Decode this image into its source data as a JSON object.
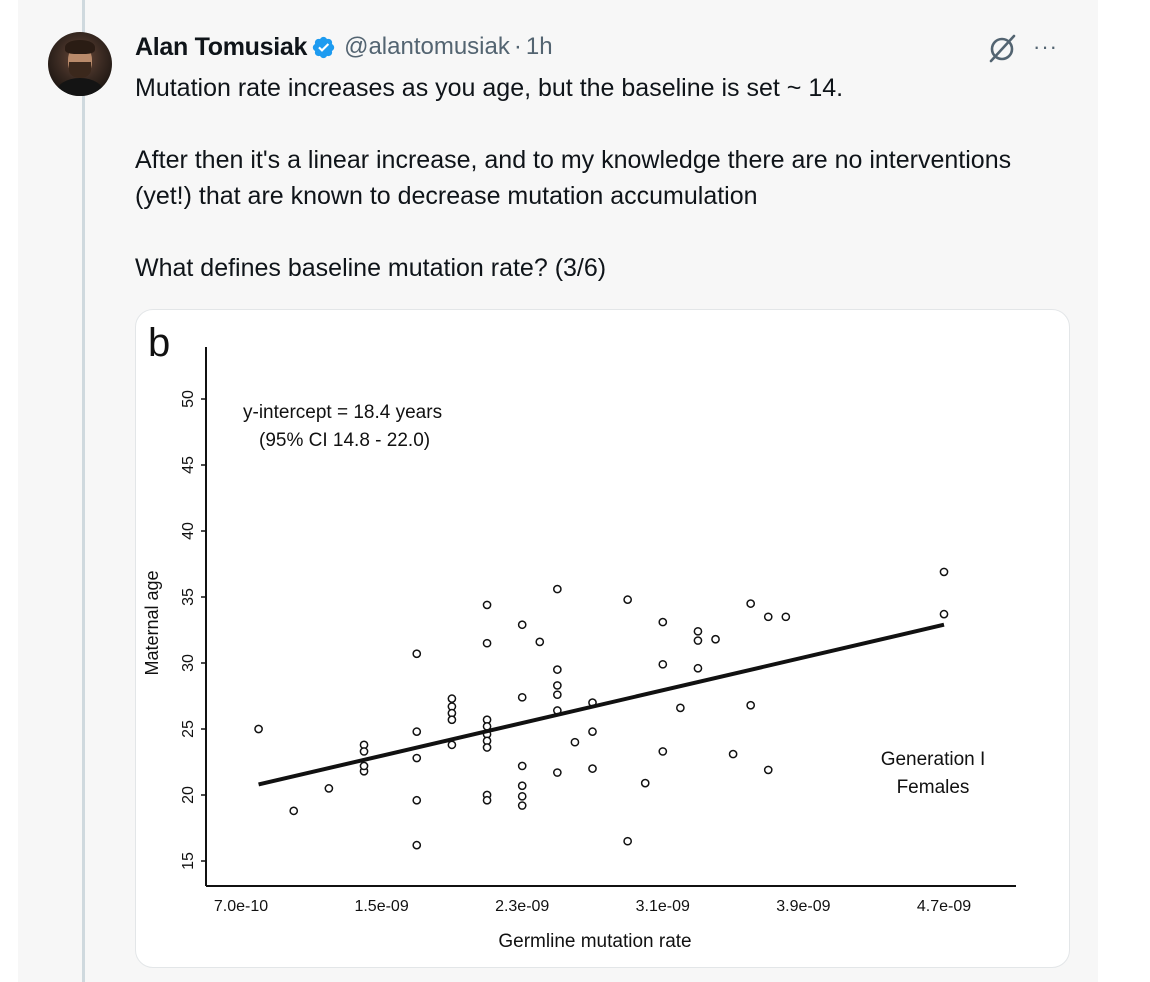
{
  "tweet": {
    "author_name": "Alan Tomusiak",
    "handle": "@alantomusiak",
    "separator": "·",
    "time": "1h",
    "paragraphs": [
      "Mutation rate increases as you age, but the baseline is set ~ 14.",
      "After then it's a linear increase, and to my knowledge there are no interventions (yet!) that are known to decrease mutation accumulation",
      "What defines baseline mutation rate? (3/6)"
    ],
    "more_label": "···",
    "icons": {
      "avatar": "avatar",
      "verified": "verified-badge-icon",
      "grok": "grok-icon",
      "more": "more-options-icon"
    },
    "colors": {
      "verified": "#1d9bf0",
      "secondary_text": "#536471"
    }
  },
  "chart_data": {
    "type": "scatter",
    "panel_label": "b",
    "xlabel": "Germline mutation rate",
    "ylabel": "Maternal age",
    "x_ticks": [
      "7.0e-10",
      "1.5e-09",
      "2.3e-09",
      "3.1e-09",
      "3.9e-09",
      "4.7e-09"
    ],
    "x_tick_values": [
      7e-10,
      1.5e-09,
      2.3e-09,
      3.1e-09,
      3.9e-09,
      4.7e-09
    ],
    "y_ticks": [
      15,
      20,
      25,
      30,
      35,
      40,
      45,
      50
    ],
    "xlim": [
      7e-10,
      4.7e-09
    ],
    "ylim": [
      13,
      51
    ],
    "annotation": [
      "y-intercept = 18.4 years",
      "(95% CI 14.8 - 22.0)"
    ],
    "group_label": [
      "Generation I",
      "Females"
    ],
    "fit_line": {
      "x": [
        8e-10,
        4.7e-09
      ],
      "y": [
        20.8,
        32.9
      ]
    },
    "points": [
      [
        8e-10,
        25.0
      ],
      [
        1e-09,
        18.8
      ],
      [
        1.2e-09,
        20.5
      ],
      [
        1.4e-09,
        23.8
      ],
      [
        1.4e-09,
        23.3
      ],
      [
        1.4e-09,
        21.8
      ],
      [
        1.4e-09,
        22.2
      ],
      [
        1.7e-09,
        30.7
      ],
      [
        1.7e-09,
        24.8
      ],
      [
        1.7e-09,
        22.8
      ],
      [
        1.7e-09,
        19.6
      ],
      [
        1.7e-09,
        16.2
      ],
      [
        1.9e-09,
        27.3
      ],
      [
        1.9e-09,
        26.7
      ],
      [
        1.9e-09,
        26.2
      ],
      [
        1.9e-09,
        25.7
      ],
      [
        1.9e-09,
        23.8
      ],
      [
        2.1e-09,
        34.4
      ],
      [
        2.1e-09,
        31.5
      ],
      [
        2.1e-09,
        25.7
      ],
      [
        2.1e-09,
        25.2
      ],
      [
        2.1e-09,
        24.6
      ],
      [
        2.1e-09,
        24.1
      ],
      [
        2.1e-09,
        23.6
      ],
      [
        2.1e-09,
        20.0
      ],
      [
        2.1e-09,
        19.6
      ],
      [
        2.3e-09,
        32.9
      ],
      [
        2.3e-09,
        27.4
      ],
      [
        2.3e-09,
        22.2
      ],
      [
        2.3e-09,
        20.7
      ],
      [
        2.3e-09,
        19.9
      ],
      [
        2.3e-09,
        19.2
      ],
      [
        2.4e-09,
        31.6
      ],
      [
        2.5e-09,
        35.6
      ],
      [
        2.5e-09,
        29.5
      ],
      [
        2.5e-09,
        28.3
      ],
      [
        2.5e-09,
        27.6
      ],
      [
        2.5e-09,
        26.4
      ],
      [
        2.5e-09,
        21.7
      ],
      [
        2.6e-09,
        24.0
      ],
      [
        2.7e-09,
        24.8
      ],
      [
        2.7e-09,
        22.0
      ],
      [
        2.7e-09,
        27.0
      ],
      [
        2.9e-09,
        34.8
      ],
      [
        2.9e-09,
        16.5
      ],
      [
        3e-09,
        20.9
      ],
      [
        3.1e-09,
        33.1
      ],
      [
        3.1e-09,
        29.9
      ],
      [
        3.1e-09,
        23.3
      ],
      [
        3.2e-09,
        26.6
      ],
      [
        3.3e-09,
        32.4
      ],
      [
        3.3e-09,
        31.7
      ],
      [
        3.3e-09,
        29.6
      ],
      [
        3.4e-09,
        31.8
      ],
      [
        3.5e-09,
        23.1
      ],
      [
        3.6e-09,
        34.5
      ],
      [
        3.6e-09,
        26.8
      ],
      [
        3.7e-09,
        33.5
      ],
      [
        3.7e-09,
        21.9
      ],
      [
        3.8e-09,
        33.5
      ],
      [
        4.7e-09,
        36.9
      ],
      [
        4.7e-09,
        33.7
      ]
    ]
  }
}
